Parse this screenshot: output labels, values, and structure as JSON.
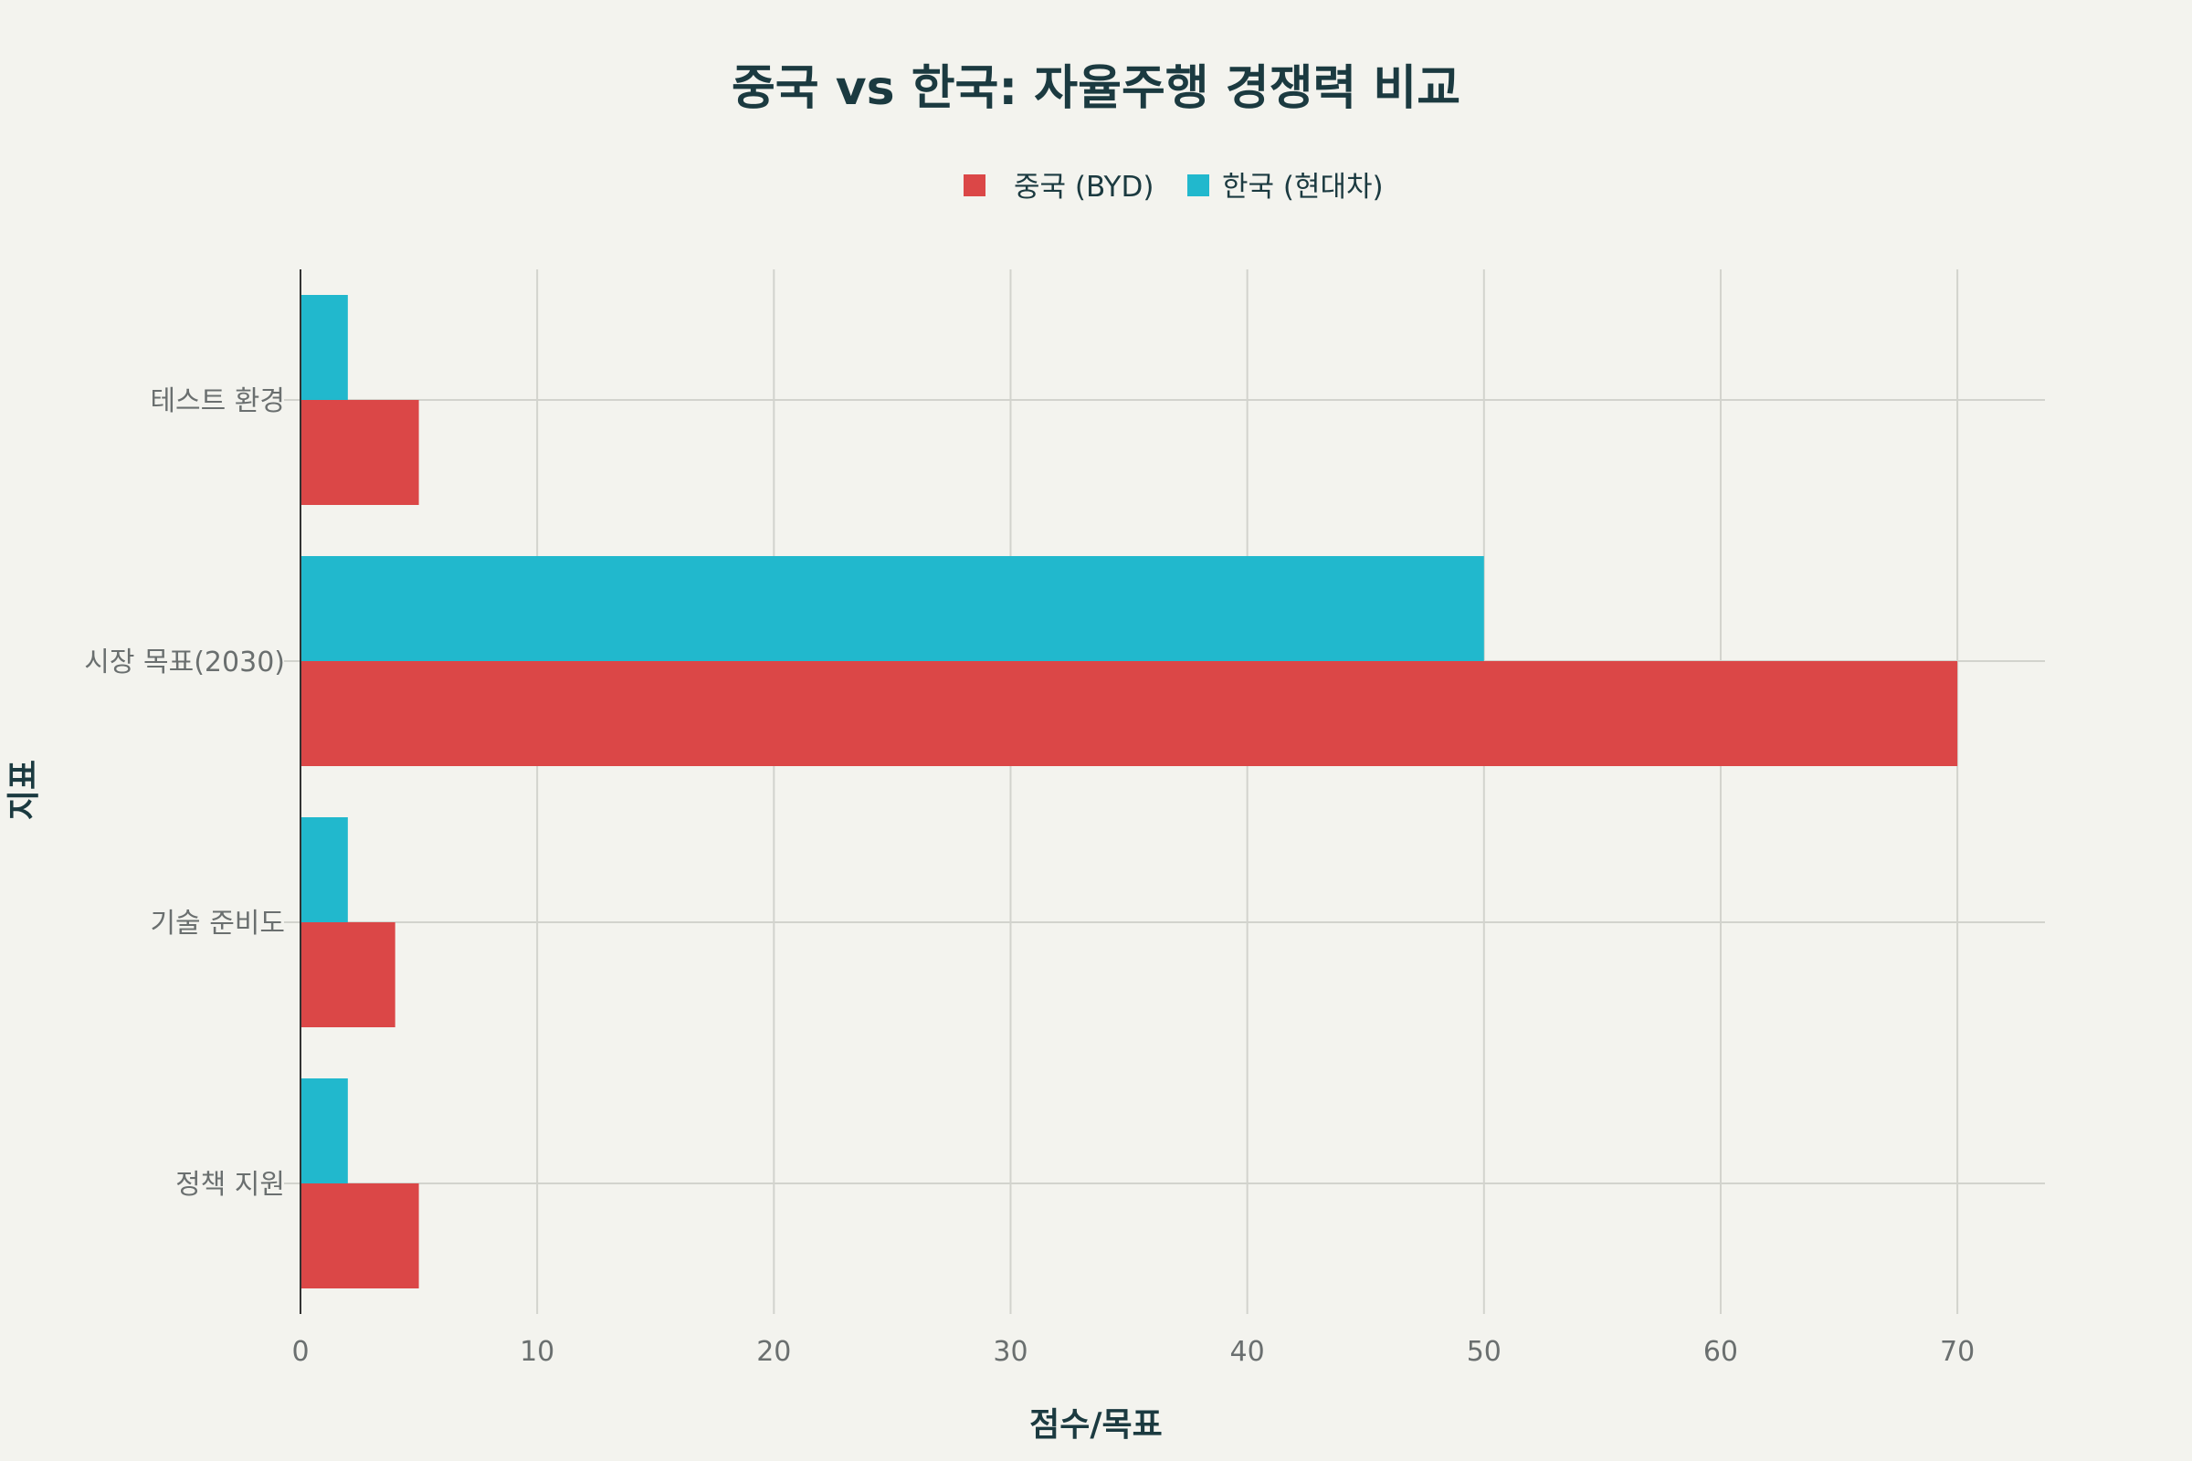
{
  "chart_data": {
    "type": "bar",
    "orientation": "horizontal",
    "title": "중국 vs 한국: 자율주행 경쟁력 비교",
    "xlabel": "점수/목표",
    "ylabel": "지표",
    "categories": [
      "테스트 환경",
      "시장 목표(2030)",
      "기술 준비도",
      "정책 지원"
    ],
    "series": [
      {
        "name": "중국 (BYD)",
        "color": "#db4747",
        "values": [
          5,
          70,
          4,
          5
        ]
      },
      {
        "name": "한국 (현대차)",
        "color": "#21b8cd",
        "values": [
          2,
          50,
          2,
          2
        ]
      }
    ],
    "xlim": [
      0,
      73.7
    ],
    "xticks": [
      "0",
      "10",
      "20",
      "30",
      "40",
      "50",
      "60",
      "70"
    ],
    "grid": true,
    "legend_position": "top-center"
  }
}
